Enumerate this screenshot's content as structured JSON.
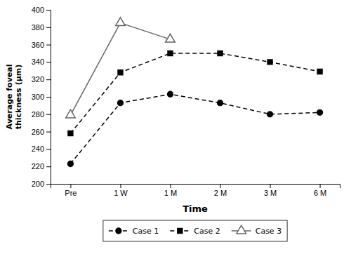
{
  "chart_data": {
    "type": "line",
    "xlabel": "Time",
    "ylabel": "Average foveal\nthickness (µm)",
    "categories": [
      "Pre",
      "1 W",
      "1 M",
      "2 M",
      "3 M",
      "6 M"
    ],
    "series": [
      {
        "name": "Case 1",
        "color": "#000000",
        "marker": "circle",
        "line_style": "dashed",
        "values": [
          223,
          293,
          303,
          293,
          280,
          282
        ]
      },
      {
        "name": "Case 2",
        "color": "#000000",
        "marker": "square",
        "line_style": "dashed",
        "values": [
          258,
          328,
          350,
          350,
          340,
          329
        ]
      },
      {
        "name": "Case 3",
        "color": "#666666",
        "marker": "open-triangle",
        "line_style": "solid",
        "values": [
          279,
          385,
          366,
          null,
          null,
          null
        ]
      }
    ],
    "ylim": [
      200,
      400
    ],
    "yticks": [
      200,
      220,
      240,
      260,
      280,
      300,
      320,
      340,
      360,
      380,
      400
    ],
    "grid": false,
    "legend": "bottom"
  }
}
